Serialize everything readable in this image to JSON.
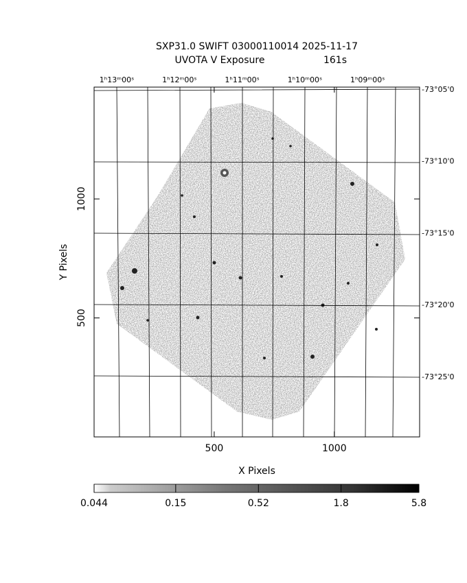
{
  "chart_data": {
    "type": "image",
    "title": "SXP31.0 SWIFT 03000110014 2025-11-17",
    "subtitle": "UVOTA V Exposure",
    "exposure": "161s",
    "x_label": "X Pixels",
    "y_label": "Y Pixels",
    "xlim": [
      0,
      1355
    ],
    "xticks": [
      500,
      1000
    ],
    "ylim": [
      0,
      1470
    ],
    "yticks": [
      500,
      1000
    ],
    "top_labels": [
      "1ʰ13ᵐ00ˢ",
      "1ʰ12ᵐ00ˢ",
      "1ʰ11ᵐ00ˢ",
      "1ʰ10ᵐ00ˢ",
      "1ʰ09ᵐ00ˢ"
    ],
    "right_labels": [
      "-73°05'0",
      "-73°10'0",
      "-73°15'0",
      "-73°20'0",
      "-73°25'0"
    ],
    "colorbar": {
      "lim": [
        0.044,
        5.8
      ],
      "ticks": [
        0.044,
        0.15,
        0.52,
        1.8,
        5.8
      ],
      "log": true
    }
  }
}
